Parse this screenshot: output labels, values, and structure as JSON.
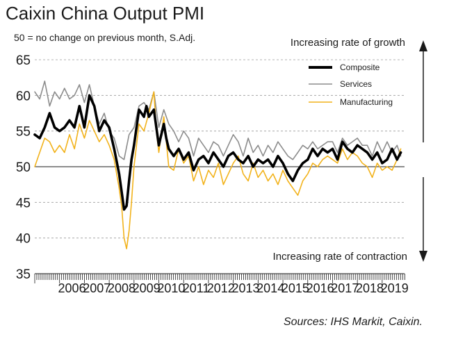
{
  "chart_data": {
    "type": "line",
    "title": "Caixin China Output PMI",
    "subtitle": "50 = no change on previous month, S.Adj.",
    "source": "Sources: IHS Markit, Caixin.",
    "annotation_top": "Increasing rate of growth",
    "annotation_bottom": "Increasing rate of contraction",
    "ylim": [
      35,
      65
    ],
    "yticks": [
      "35",
      "40",
      "45",
      "50",
      "55",
      "60",
      "65"
    ],
    "xlim": [
      2005.0,
      2019.9
    ],
    "xticks": [
      "2006",
      "2007",
      "2008",
      "2009",
      "2010",
      "2011",
      "2012",
      "2013",
      "2014",
      "2015",
      "2016",
      "2017",
      "2018",
      "2019"
    ],
    "reference_line": 50,
    "gridlines": "dashed horizontal",
    "legend_position": "top-right",
    "colors": {
      "Composite": "#000000",
      "Services": "#8c8c8c",
      "Manufacturing": "#f2b21a"
    },
    "series": [
      {
        "name": "Composite",
        "x": [
          2005.0,
          2005.2,
          2005.4,
          2005.6,
          2005.8,
          2006.0,
          2006.2,
          2006.4,
          2006.6,
          2006.8,
          2007.0,
          2007.2,
          2007.4,
          2007.6,
          2007.8,
          2008.0,
          2008.2,
          2008.4,
          2008.5,
          2008.6,
          2008.7,
          2008.8,
          2008.9,
          2009.0,
          2009.2,
          2009.4,
          2009.5,
          2009.6,
          2009.8,
          2010.0,
          2010.2,
          2010.3,
          2010.4,
          2010.6,
          2010.8,
          2011.0,
          2011.2,
          2011.4,
          2011.6,
          2011.8,
          2012.0,
          2012.2,
          2012.4,
          2012.6,
          2012.8,
          2013.0,
          2013.2,
          2013.4,
          2013.6,
          2013.8,
          2014.0,
          2014.2,
          2014.4,
          2014.6,
          2014.8,
          2015.0,
          2015.2,
          2015.4,
          2015.6,
          2015.8,
          2016.0,
          2016.2,
          2016.4,
          2016.6,
          2016.8,
          2017.0,
          2017.2,
          2017.4,
          2017.6,
          2017.8,
          2018.0,
          2018.2,
          2018.4,
          2018.6,
          2018.8,
          2019.0,
          2019.2,
          2019.4,
          2019.6,
          2019.75
        ],
        "values": [
          54.5,
          54.0,
          55.5,
          57.5,
          55.5,
          55.0,
          55.5,
          56.5,
          55.5,
          58.5,
          55.5,
          60.0,
          58.5,
          55.0,
          56.5,
          55.5,
          52.5,
          49.0,
          46.5,
          44.0,
          44.5,
          48.0,
          51.0,
          53.0,
          58.0,
          57.0,
          58.5,
          57.0,
          58.0,
          53.0,
          56.0,
          54.0,
          52.5,
          51.5,
          52.5,
          51.0,
          52.0,
          49.5,
          51.0,
          51.5,
          50.5,
          52.0,
          51.0,
          50.0,
          51.5,
          52.0,
          51.0,
          50.5,
          51.5,
          50.0,
          51.0,
          50.5,
          51.0,
          50.0,
          51.5,
          50.5,
          49.0,
          48.0,
          49.5,
          50.5,
          51.0,
          52.5,
          51.5,
          52.5,
          52.0,
          52.5,
          51.0,
          53.5,
          52.5,
          52.0,
          53.0,
          52.5,
          52.0,
          51.0,
          52.0,
          50.5,
          51.0,
          52.5,
          51.0,
          52.0
        ]
      },
      {
        "name": "Services",
        "x": [
          2005.0,
          2005.2,
          2005.4,
          2005.6,
          2005.8,
          2006.0,
          2006.2,
          2006.4,
          2006.6,
          2006.8,
          2007.0,
          2007.2,
          2007.4,
          2007.6,
          2007.8,
          2008.0,
          2008.2,
          2008.4,
          2008.6,
          2008.8,
          2009.0,
          2009.2,
          2009.4,
          2009.6,
          2009.8,
          2010.0,
          2010.2,
          2010.4,
          2010.6,
          2010.8,
          2011.0,
          2011.2,
          2011.4,
          2011.6,
          2011.8,
          2012.0,
          2012.2,
          2012.4,
          2012.6,
          2012.8,
          2013.0,
          2013.2,
          2013.4,
          2013.6,
          2013.8,
          2014.0,
          2014.2,
          2014.4,
          2014.6,
          2014.8,
          2015.0,
          2015.2,
          2015.4,
          2015.6,
          2015.8,
          2016.0,
          2016.2,
          2016.4,
          2016.6,
          2016.8,
          2017.0,
          2017.2,
          2017.4,
          2017.6,
          2017.8,
          2018.0,
          2018.2,
          2018.4,
          2018.6,
          2018.8,
          2019.0,
          2019.2,
          2019.4,
          2019.6,
          2019.75
        ],
        "values": [
          60.5,
          59.5,
          62.0,
          58.5,
          60.5,
          59.5,
          61.0,
          59.5,
          60.0,
          61.5,
          59.0,
          61.5,
          58.5,
          56.0,
          57.5,
          55.0,
          54.0,
          51.5,
          51.0,
          54.5,
          55.5,
          58.5,
          59.0,
          58.0,
          60.5,
          55.5,
          58.0,
          56.0,
          55.0,
          53.5,
          55.0,
          54.0,
          51.5,
          54.0,
          53.0,
          52.0,
          53.5,
          53.0,
          51.5,
          53.0,
          54.5,
          53.5,
          51.5,
          54.0,
          52.0,
          53.0,
          51.5,
          53.0,
          52.0,
          53.5,
          52.5,
          51.5,
          51.0,
          52.0,
          53.0,
          52.5,
          53.5,
          52.5,
          53.0,
          53.5,
          53.5,
          52.0,
          54.0,
          53.0,
          53.5,
          54.0,
          53.0,
          53.0,
          51.5,
          53.5,
          52.0,
          53.5,
          52.0,
          53.0,
          51.5
        ]
      },
      {
        "name": "Manufacturing",
        "x": [
          2005.0,
          2005.2,
          2005.4,
          2005.6,
          2005.8,
          2006.0,
          2006.2,
          2006.4,
          2006.6,
          2006.8,
          2007.0,
          2007.2,
          2007.4,
          2007.6,
          2007.8,
          2008.0,
          2008.2,
          2008.4,
          2008.5,
          2008.6,
          2008.7,
          2008.8,
          2008.9,
          2009.0,
          2009.2,
          2009.4,
          2009.6,
          2009.8,
          2009.9,
          2010.0,
          2010.2,
          2010.4,
          2010.6,
          2010.8,
          2011.0,
          2011.2,
          2011.4,
          2011.6,
          2011.8,
          2012.0,
          2012.2,
          2012.4,
          2012.6,
          2012.8,
          2013.0,
          2013.2,
          2013.4,
          2013.6,
          2013.8,
          2014.0,
          2014.2,
          2014.4,
          2014.6,
          2014.8,
          2015.0,
          2015.2,
          2015.4,
          2015.6,
          2015.8,
          2016.0,
          2016.2,
          2016.4,
          2016.6,
          2016.8,
          2017.0,
          2017.2,
          2017.4,
          2017.6,
          2017.8,
          2018.0,
          2018.2,
          2018.4,
          2018.6,
          2018.8,
          2019.0,
          2019.2,
          2019.4,
          2019.6,
          2019.75
        ],
        "values": [
          50.0,
          52.0,
          54.0,
          53.5,
          52.0,
          53.0,
          52.0,
          54.5,
          52.5,
          56.0,
          54.0,
          56.5,
          55.0,
          53.5,
          54.5,
          53.0,
          51.0,
          47.0,
          44.5,
          40.0,
          38.5,
          41.0,
          45.0,
          50.0,
          56.0,
          55.0,
          57.5,
          60.5,
          55.0,
          52.0,
          57.0,
          50.0,
          49.5,
          52.5,
          50.5,
          51.5,
          48.0,
          50.0,
          47.5,
          49.5,
          48.5,
          50.5,
          47.5,
          49.0,
          50.5,
          51.5,
          49.0,
          48.0,
          50.5,
          48.5,
          49.5,
          48.0,
          49.0,
          47.5,
          49.5,
          48.0,
          47.0,
          46.0,
          48.0,
          49.0,
          50.5,
          50.0,
          51.0,
          51.5,
          51.0,
          50.5,
          52.5,
          51.0,
          52.0,
          51.5,
          50.5,
          50.0,
          48.5,
          50.5,
          49.5,
          50.0,
          49.5,
          51.0,
          52.5
        ]
      }
    ]
  }
}
